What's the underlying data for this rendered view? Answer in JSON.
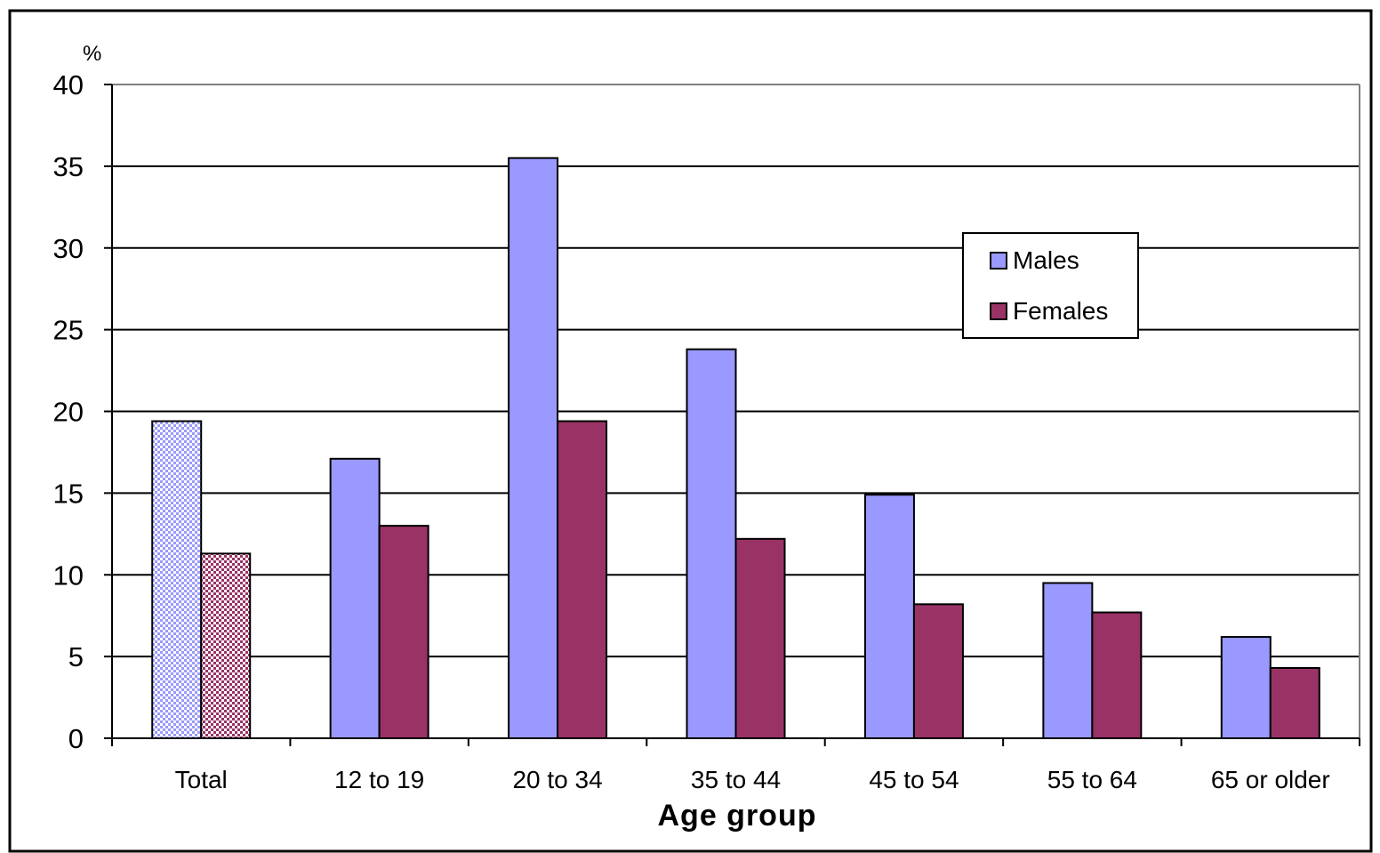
{
  "chart_data": {
    "type": "bar",
    "ylabel": "%",
    "xlabel": "Age group",
    "ylim": [
      0,
      40
    ],
    "yticks": [
      0,
      5,
      10,
      15,
      20,
      25,
      30,
      35,
      40
    ],
    "grid": true,
    "legend_position": "top-right",
    "categories": [
      "Total",
      "12 to 19",
      "20 to 34",
      "35 to 44",
      "45 to 54",
      "55 to 64",
      "65 or older"
    ],
    "series": [
      {
        "name": "Males",
        "color": "#9999FF",
        "values": [
          19.4,
          17.1,
          35.5,
          23.8,
          14.9,
          9.5,
          6.2
        ],
        "patterned_categories": [
          "Total"
        ]
      },
      {
        "name": "Females",
        "color": "#993366",
        "values": [
          11.3,
          13.0,
          19.4,
          12.2,
          8.2,
          7.7,
          4.3
        ],
        "patterned_categories": [
          "Total"
        ]
      }
    ]
  }
}
